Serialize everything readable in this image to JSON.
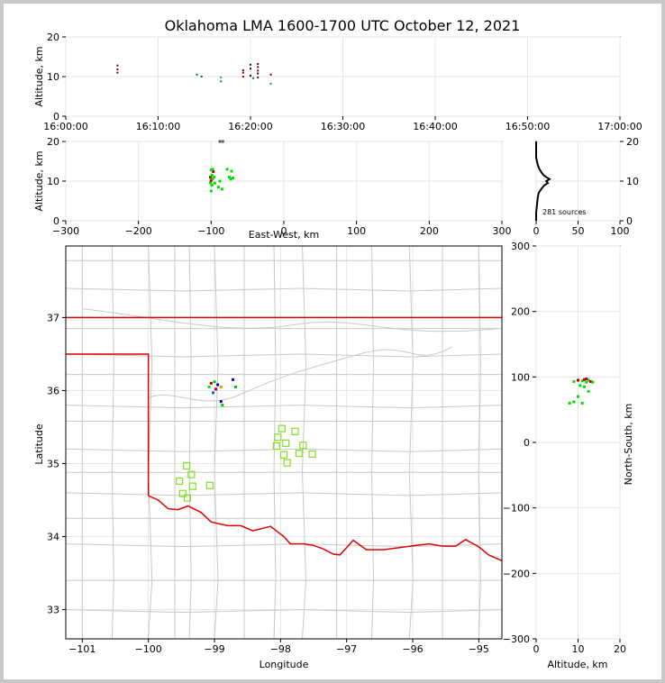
{
  "chart_data": {
    "title": "Oklahoma LMA 1600-1700 UTC October 12, 2021",
    "colors": {
      "frame": "#c8c8c8",
      "county": "#c8c8c8",
      "state": "#e00000",
      "grid": "#e6e6e6"
    },
    "time_height": {
      "type": "scatter",
      "ylabel": "Altitude, km",
      "ylim": [
        0,
        20
      ],
      "yticks": [
        "0",
        "10",
        "20"
      ],
      "xticks": [
        "16:00:00",
        "16:10:00",
        "16:20:00",
        "16:30:00",
        "16:40:00",
        "16:50:00",
        "17:00:00"
      ],
      "xlim_minutes": [
        0,
        60
      ],
      "points": [
        {
          "x": 5.6,
          "y": 11.0,
          "c": "#7a0000"
        },
        {
          "x": 5.6,
          "y": 11.8,
          "c": "#7a0000"
        },
        {
          "x": 5.6,
          "y": 12.8,
          "c": "#7a0000"
        },
        {
          "x": 14.2,
          "y": 10.5,
          "c": "#006060"
        },
        {
          "x": 14.7,
          "y": 10.0,
          "c": "#006060"
        },
        {
          "x": 16.8,
          "y": 8.8,
          "c": "#008080"
        },
        {
          "x": 16.8,
          "y": 9.8,
          "c": "#00a0a0"
        },
        {
          "x": 19.2,
          "y": 10.0,
          "c": "#800000"
        },
        {
          "x": 19.2,
          "y": 11.0,
          "c": "#800000"
        },
        {
          "x": 19.2,
          "y": 11.6,
          "c": "#800000"
        },
        {
          "x": 20.0,
          "y": 10.2,
          "c": "#400000"
        },
        {
          "x": 20.0,
          "y": 12.0,
          "c": "#400000"
        },
        {
          "x": 20.0,
          "y": 13.0,
          "c": "#400000"
        },
        {
          "x": 20.3,
          "y": 9.6,
          "c": "#00a000"
        },
        {
          "x": 20.8,
          "y": 9.8,
          "c": "#600000"
        },
        {
          "x": 20.8,
          "y": 10.8,
          "c": "#600000"
        },
        {
          "x": 20.8,
          "y": 11.5,
          "c": "#600000"
        },
        {
          "x": 20.8,
          "y": 12.4,
          "c": "#600000"
        },
        {
          "x": 20.8,
          "y": 13.2,
          "c": "#600000"
        },
        {
          "x": 22.2,
          "y": 8.2,
          "c": "#00a0a0"
        },
        {
          "x": 22.2,
          "y": 10.5,
          "c": "#800000"
        }
      ]
    },
    "ew_height": {
      "type": "scatter",
      "xlabel": "East-West, km",
      "ylabel": "Altitude, km",
      "xlim": [
        -300,
        300
      ],
      "ylim": [
        0,
        20
      ],
      "xticks": [
        "−300",
        "−200",
        "−100",
        "0",
        "100",
        "200",
        "300"
      ],
      "yticks": [
        "0",
        "10",
        "20"
      ],
      "points": [
        {
          "x": -100,
          "y": 7.5,
          "c": "#00e000"
        },
        {
          "x": -99,
          "y": 9.0,
          "c": "#00e000"
        },
        {
          "x": -101,
          "y": 9.6,
          "c": "#00e000"
        },
        {
          "x": -100,
          "y": 10.2,
          "c": "#c00000"
        },
        {
          "x": -98,
          "y": 10.6,
          "c": "#00e000"
        },
        {
          "x": -101,
          "y": 11.0,
          "c": "#c00000"
        },
        {
          "x": -99,
          "y": 11.5,
          "c": "#00e000"
        },
        {
          "x": -97,
          "y": 12.4,
          "c": "#c00000"
        },
        {
          "x": -98,
          "y": 13.0,
          "c": "#00e000"
        },
        {
          "x": -100,
          "y": 12.8,
          "c": "#00e000"
        },
        {
          "x": -96,
          "y": 11.0,
          "c": "#00e000"
        },
        {
          "x": -95,
          "y": 9.5,
          "c": "#00e000"
        },
        {
          "x": -90,
          "y": 8.5,
          "c": "#00e000"
        },
        {
          "x": -88,
          "y": 10.0,
          "c": "#00e000"
        },
        {
          "x": -85,
          "y": 8.0,
          "c": "#00e000"
        },
        {
          "x": -78,
          "y": 13.0,
          "c": "#00e000"
        },
        {
          "x": -72,
          "y": 12.5,
          "c": "#00e000"
        },
        {
          "x": -70,
          "y": 10.8,
          "c": "#00e000"
        },
        {
          "x": -75,
          "y": 11.0,
          "c": "#00e000"
        },
        {
          "x": -73,
          "y": 10.5,
          "c": "#00e000"
        },
        {
          "x": -88,
          "y": 20.0,
          "c": "#606060"
        },
        {
          "x": -84,
          "y": 20.0,
          "c": "#606060"
        }
      ]
    },
    "histogram": {
      "type": "line",
      "xlim": [
        0,
        100
      ],
      "ylim": [
        0,
        20
      ],
      "xticks": [
        "0",
        "50",
        "100"
      ],
      "yticks": [
        "0",
        "10",
        "20"
      ],
      "annotation": "281 sources",
      "altitude_km": [
        0,
        2,
        4,
        6,
        7,
        8,
        9,
        9.5,
        10,
        10.5,
        11,
        11.5,
        12,
        13,
        14,
        15,
        16,
        20
      ],
      "counts": [
        0,
        0,
        1,
        2,
        3,
        6,
        10,
        14,
        12,
        16,
        12,
        9,
        7,
        4,
        2,
        1,
        0,
        0
      ]
    },
    "plan_view": {
      "type": "scatter",
      "xlabel": "Longitude",
      "ylabel": "Latitude",
      "xlim": [
        -101.25,
        -94.65
      ],
      "ylim": [
        32.6,
        37.98
      ],
      "xticks": [
        "−101",
        "−100",
        "−99",
        "−98",
        "−97",
        "−96",
        "−95"
      ],
      "yticks": [
        "33",
        "34",
        "35",
        "36",
        "37"
      ],
      "points": [
        {
          "x": -99.05,
          "y": 36.1,
          "c": "#c00000"
        },
        {
          "x": -99.0,
          "y": 36.12,
          "c": "#00c000"
        },
        {
          "x": -98.95,
          "y": 36.08,
          "c": "#0000c0"
        },
        {
          "x": -99.08,
          "y": 36.05,
          "c": "#00e000"
        },
        {
          "x": -98.98,
          "y": 36.02,
          "c": "#c00000"
        },
        {
          "x": -99.02,
          "y": 35.97,
          "c": "#0070c0"
        },
        {
          "x": -98.9,
          "y": 36.05,
          "c": "#e0a000"
        },
        {
          "x": -98.72,
          "y": 36.15,
          "c": "#0000c0"
        },
        {
          "x": -98.68,
          "y": 36.05,
          "c": "#00c000"
        },
        {
          "x": -98.9,
          "y": 35.85,
          "c": "#0000c0"
        },
        {
          "x": -98.88,
          "y": 35.8,
          "c": "#00c000"
        }
      ],
      "squares": [
        {
          "x": -97.98,
          "y": 35.48
        },
        {
          "x": -97.78,
          "y": 35.44
        },
        {
          "x": -98.04,
          "y": 35.36
        },
        {
          "x": -97.92,
          "y": 35.28
        },
        {
          "x": -98.06,
          "y": 35.24
        },
        {
          "x": -97.66,
          "y": 35.25
        },
        {
          "x": -97.95,
          "y": 35.12
        },
        {
          "x": -97.72,
          "y": 35.14
        },
        {
          "x": -97.52,
          "y": 35.13
        },
        {
          "x": -97.9,
          "y": 35.01
        },
        {
          "x": -99.42,
          "y": 34.97
        },
        {
          "x": -99.35,
          "y": 34.85
        },
        {
          "x": -99.53,
          "y": 34.76
        },
        {
          "x": -99.33,
          "y": 34.69
        },
        {
          "x": -99.07,
          "y": 34.7
        },
        {
          "x": -99.48,
          "y": 34.59
        },
        {
          "x": -99.41,
          "y": 34.53
        }
      ]
    },
    "ns_altitude": {
      "type": "scatter",
      "xlabel": "Altitude, km",
      "ylabel": "North-South, km",
      "xlim": [
        0,
        20
      ],
      "ylim": [
        -300,
        300
      ],
      "xticks": [
        "0",
        "10",
        "20"
      ],
      "yticks": [
        "−300",
        "−200",
        "−100",
        "0",
        "100",
        "200",
        "300"
      ],
      "points": [
        {
          "x": 9,
          "y": 93,
          "c": "#00e000"
        },
        {
          "x": 10,
          "y": 95,
          "c": "#c00000"
        },
        {
          "x": 11,
          "y": 94,
          "c": "#00e000"
        },
        {
          "x": 11.5,
          "y": 96,
          "c": "#c00000"
        },
        {
          "x": 12,
          "y": 92,
          "c": "#00e000"
        },
        {
          "x": 12.5,
          "y": 95,
          "c": "#00e000"
        },
        {
          "x": 13,
          "y": 93,
          "c": "#c00000"
        },
        {
          "x": 13.5,
          "y": 92,
          "c": "#00e000"
        },
        {
          "x": 10.5,
          "y": 87,
          "c": "#00e000"
        },
        {
          "x": 11.5,
          "y": 85,
          "c": "#00e000"
        },
        {
          "x": 12.5,
          "y": 78,
          "c": "#00e000"
        },
        {
          "x": 10,
          "y": 70,
          "c": "#00e000"
        },
        {
          "x": 9,
          "y": 62,
          "c": "#00e000"
        },
        {
          "x": 8,
          "y": 60,
          "c": "#00e000"
        },
        {
          "x": 11,
          "y": 60,
          "c": "#00e000"
        },
        {
          "x": 12,
          "y": 97,
          "c": "#c00000"
        }
      ]
    }
  }
}
